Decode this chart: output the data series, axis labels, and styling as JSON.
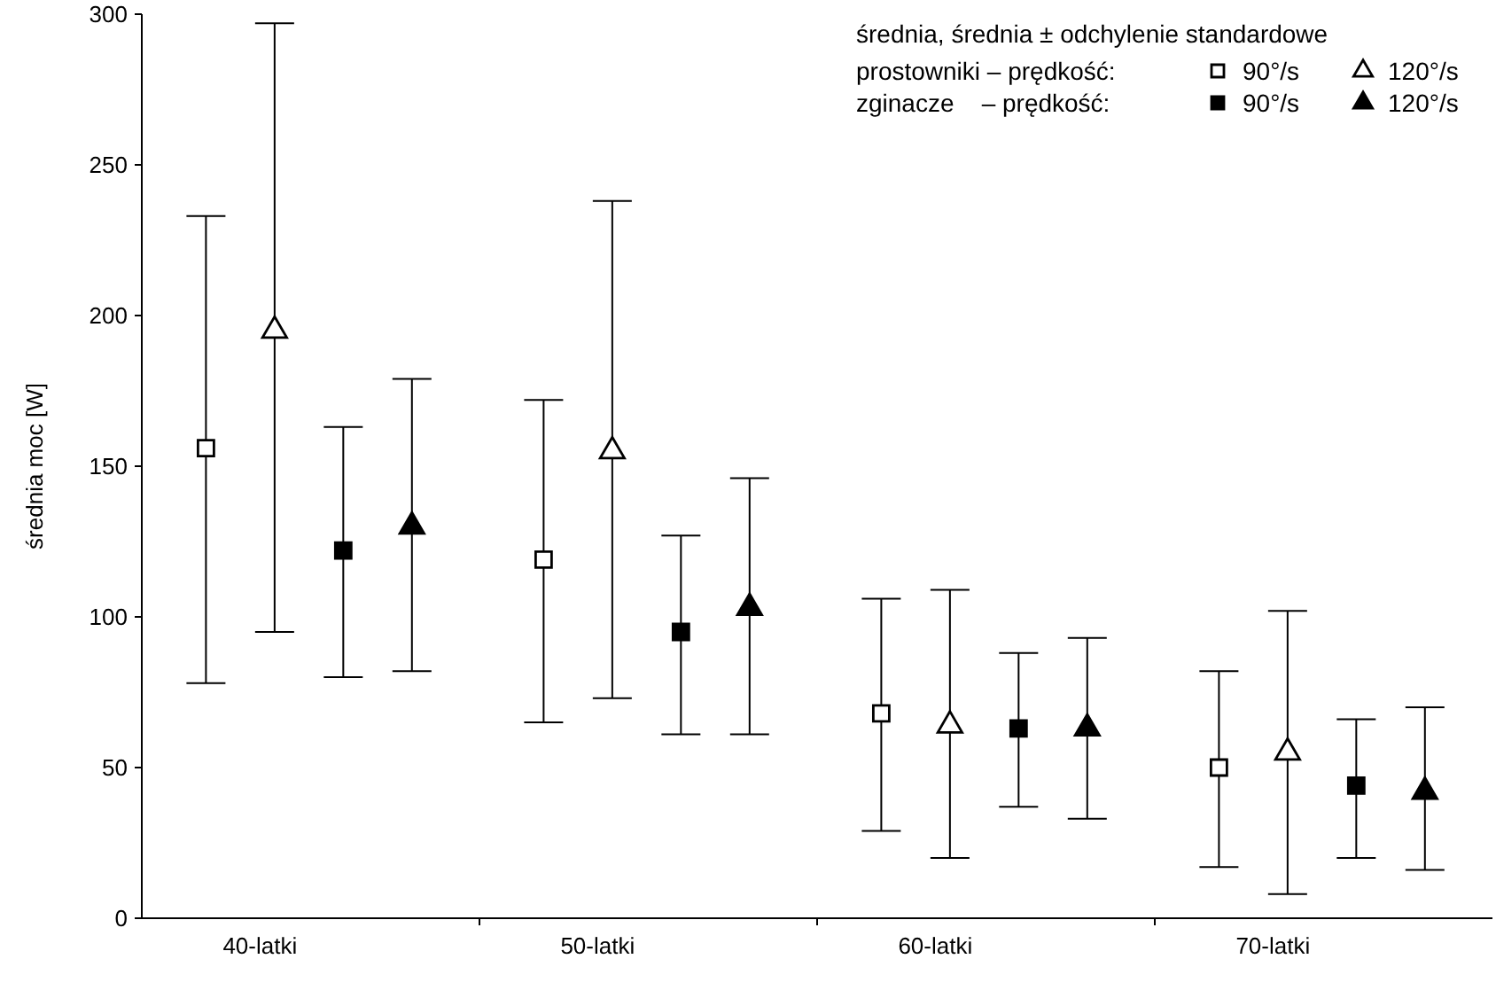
{
  "chart_data": {
    "type": "scatter",
    "ylabel": "średnia moc [W]",
    "legend_title": "średnia, średnia ± odchylenie standardowe",
    "annotations": [
      "prostowniki – prędkość:",
      "zginacze    – prędkość:"
    ],
    "categories": [
      "40-latki",
      "50-latki",
      "60-latki",
      "70-latki"
    ],
    "ylim": [
      0,
      300
    ],
    "yticks": [
      0,
      50,
      100,
      150,
      200,
      250,
      300
    ],
    "legend": "top right",
    "grid": false,
    "series": [
      {
        "name": "90°/s",
        "color": "#ffffff",
        "marker": "square",
        "values": [
          156,
          119,
          68,
          50
        ],
        "errors": [
          [
            78,
            233
          ],
          [
            65,
            172
          ],
          [
            29,
            106
          ],
          [
            17,
            82
          ]
        ]
      },
      {
        "name": "120°/s",
        "color": "#ffffff",
        "marker": "triangle",
        "values": [
          195,
          155,
          64,
          55
        ],
        "errors": [
          [
            95,
            297
          ],
          [
            73,
            238
          ],
          [
            20,
            109
          ],
          [
            8,
            102
          ]
        ]
      },
      {
        "name": "90°/s",
        "color": "#000000",
        "marker": "square",
        "values": [
          122,
          95,
          63,
          44
        ],
        "errors": [
          [
            80,
            163
          ],
          [
            61,
            127
          ],
          [
            37,
            88
          ],
          [
            20,
            66
          ]
        ]
      },
      {
        "name": "120°/s",
        "color": "#000000",
        "marker": "triangle",
        "values": [
          130,
          103,
          63,
          42
        ],
        "errors": [
          [
            82,
            179
          ],
          [
            61,
            146
          ],
          [
            33,
            93
          ],
          [
            16,
            70
          ]
        ]
      }
    ]
  }
}
